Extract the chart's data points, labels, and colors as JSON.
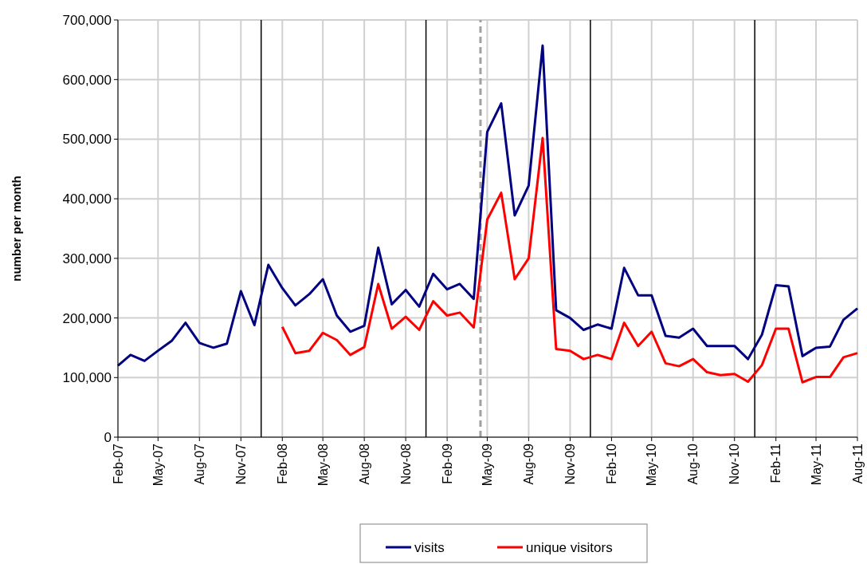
{
  "chart_data": {
    "type": "line",
    "ylabel": "number per month",
    "x": [
      "2007-02",
      "2007-03",
      "2007-04",
      "2007-05",
      "2007-06",
      "2007-07",
      "2007-08",
      "2007-09",
      "2007-10",
      "2007-11",
      "2007-12",
      "2008-01",
      "2008-02",
      "2008-03",
      "2008-04",
      "2008-05",
      "2008-06",
      "2008-07",
      "2008-08",
      "2008-09",
      "2008-10",
      "2008-11",
      "2008-12",
      "2009-01",
      "2009-02",
      "2009-03",
      "2009-04",
      "2009-05",
      "2009-06",
      "2009-07",
      "2009-08",
      "2009-09",
      "2009-10",
      "2009-11",
      "2009-12",
      "2010-01",
      "2010-02",
      "2010-03",
      "2010-04",
      "2010-05",
      "2010-06",
      "2010-07",
      "2010-08",
      "2010-09",
      "2010-10",
      "2010-11",
      "2010-12",
      "2011-01",
      "2011-02",
      "2011-03",
      "2011-04",
      "2011-05",
      "2011-06",
      "2011-07",
      "2011-08"
    ],
    "series": [
      {
        "name": "visits",
        "color": "#000080",
        "values": [
          120000,
          138000,
          128000,
          145000,
          162000,
          192000,
          158000,
          150000,
          157000,
          245000,
          188000,
          289000,
          250000,
          221000,
          240000,
          265000,
          204000,
          177000,
          187000,
          318000,
          223000,
          247000,
          219000,
          274000,
          248000,
          257000,
          232000,
          512000,
          560000,
          372000,
          422000,
          657000,
          213000,
          200000,
          180000,
          189000,
          182000,
          284000,
          238000,
          238000,
          170000,
          167000,
          182000,
          153000,
          153000,
          153000,
          131000,
          172000,
          255000,
          253000,
          136000,
          150000,
          152000,
          197000,
          216000
        ]
      },
      {
        "name": "unique visitors",
        "color": "#ff0000",
        "values": [
          null,
          null,
          null,
          null,
          null,
          null,
          null,
          null,
          null,
          null,
          null,
          null,
          185000,
          141000,
          145000,
          175000,
          163000,
          138000,
          151000,
          257000,
          182000,
          202000,
          180000,
          228000,
          204000,
          209000,
          184000,
          365000,
          410000,
          265000,
          300000,
          502000,
          148000,
          145000,
          131000,
          138000,
          131000,
          192000,
          153000,
          177000,
          124000,
          119000,
          131000,
          109000,
          104000,
          106000,
          93000,
          121000,
          182000,
          182000,
          92000,
          101000,
          101000,
          134000,
          141000
        ]
      }
    ],
    "xlim": [
      "2007-02",
      "2011-08"
    ],
    "xticks": [
      {
        "value": "2007-02",
        "label": "Feb-07"
      },
      {
        "value": "2007-05",
        "label": "May-07"
      },
      {
        "value": "2007-08",
        "label": "Aug-07"
      },
      {
        "value": "2007-11",
        "label": "Nov-07"
      },
      {
        "value": "2008-02",
        "label": "Feb-08"
      },
      {
        "value": "2008-05",
        "label": "May-08"
      },
      {
        "value": "2008-08",
        "label": "Aug-08"
      },
      {
        "value": "2008-11",
        "label": "Nov-08"
      },
      {
        "value": "2009-02",
        "label": "Feb-09"
      },
      {
        "value": "2009-05",
        "label": "May-09"
      },
      {
        "value": "2009-08",
        "label": "Aug-09"
      },
      {
        "value": "2009-11",
        "label": "Nov-09"
      },
      {
        "value": "2010-02",
        "label": "Feb-10"
      },
      {
        "value": "2010-05",
        "label": "May-10"
      },
      {
        "value": "2010-08",
        "label": "Aug-10"
      },
      {
        "value": "2010-11",
        "label": "Nov-10"
      },
      {
        "value": "2011-02",
        "label": "Feb-11"
      },
      {
        "value": "2011-05",
        "label": "May-11"
      },
      {
        "value": "2011-08",
        "label": "Aug-11"
      }
    ],
    "ylim": [
      0,
      700000
    ],
    "yticks": [
      0,
      {
        "value": 100000,
        "label": "100,000"
      },
      {
        "value": 200000,
        "label": "200,000"
      },
      {
        "value": 300000,
        "label": "300,000"
      },
      {
        "value": 400000,
        "label": "400,000"
      },
      {
        "value": 500000,
        "label": "500,000"
      },
      {
        "value": 600000,
        "label": "600,000"
      },
      {
        "value": 700000,
        "label": "700,000"
      }
    ],
    "ref_lines": [
      {
        "axis": "x",
        "value": "2007-12-16",
        "color": "#000000",
        "line_style": "solid"
      },
      {
        "axis": "x",
        "value": "2008-12-16",
        "color": "#000000",
        "line_style": "solid"
      },
      {
        "axis": "x",
        "value": "2009-04-16",
        "color": "#a0a0a0",
        "line_style": "dashed"
      },
      {
        "axis": "x",
        "value": "2009-12-16",
        "color": "#000000",
        "line_style": "solid"
      },
      {
        "axis": "x",
        "value": "2010-12-16",
        "color": "#000000",
        "line_style": "solid"
      }
    ],
    "grid": true,
    "legend": "bottom",
    "marker": "none",
    "line_style": "solid"
  }
}
